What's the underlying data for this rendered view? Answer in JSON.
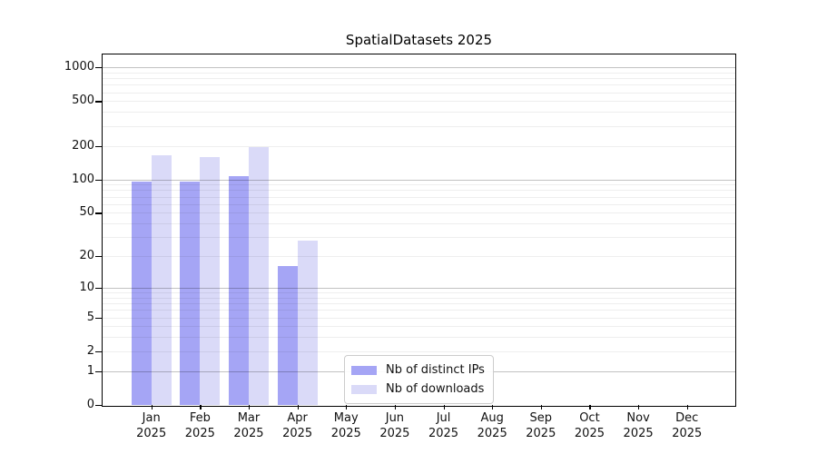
{
  "chart_data": {
    "type": "bar",
    "title": "SpatialDatasets 2025",
    "categories": [
      "Jan 2025",
      "Feb 2025",
      "Mar 2025",
      "Apr 2025",
      "May 2025",
      "Jun 2025",
      "Jul 2025",
      "Aug 2025",
      "Sep 2025",
      "Oct 2025",
      "Nov 2025",
      "Dec 2025"
    ],
    "series": [
      {
        "name": "Nb of distinct IPs",
        "color": "#a5a5f5",
        "values": [
          95,
          95,
          107,
          16,
          null,
          null,
          null,
          null,
          null,
          null,
          null,
          null
        ]
      },
      {
        "name": "Nb of downloads",
        "color": "#dadaf8",
        "values": [
          166,
          158,
          196,
          28,
          null,
          null,
          null,
          null,
          null,
          null,
          null,
          null
        ]
      }
    ],
    "xlabel": "",
    "ylabel": "",
    "yscale": "log1p",
    "ylim": [
      0,
      1300
    ],
    "yticks": [
      0,
      1,
      2,
      5,
      10,
      20,
      50,
      100,
      200,
      500,
      1000
    ],
    "major_gridline_values": [
      1,
      10,
      100,
      1000
    ],
    "grid": true,
    "legend_position": "lower center-left inside plot",
    "background_color": "#ffffff",
    "axis_color": "#000000"
  }
}
